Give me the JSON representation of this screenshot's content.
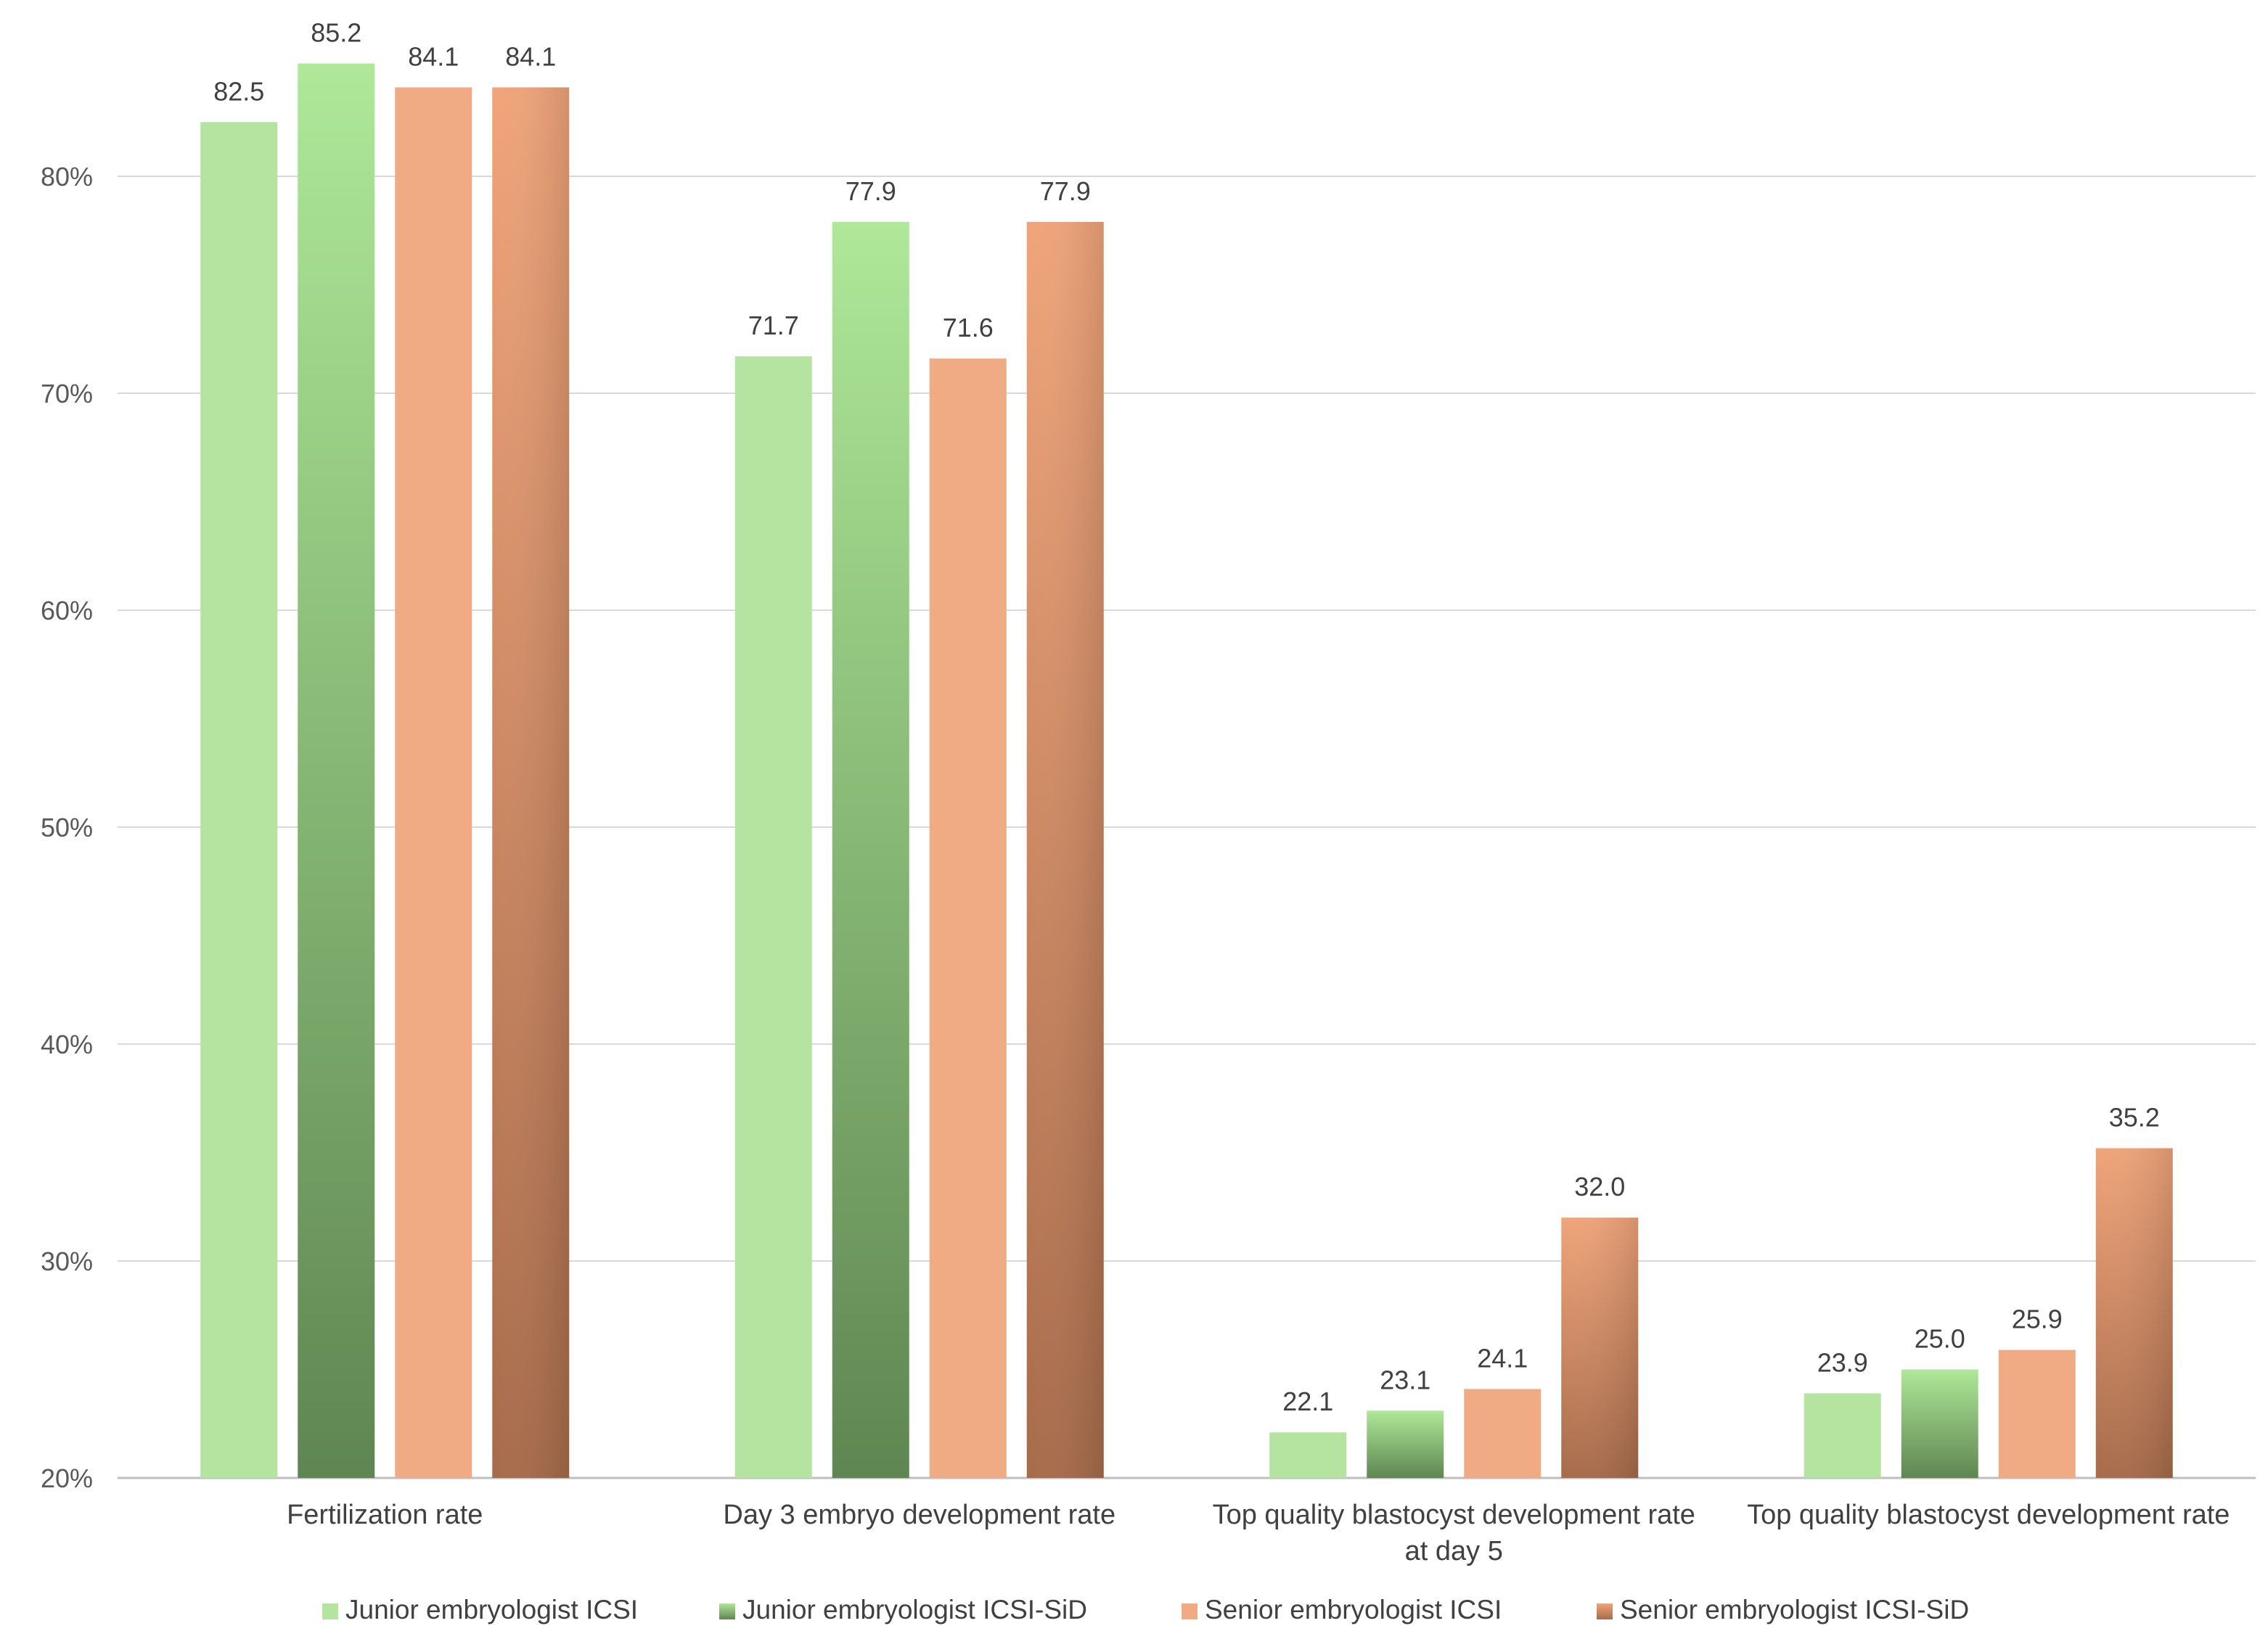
{
  "chart_data": {
    "type": "bar",
    "title": "",
    "xlabel": "",
    "ylabel": "",
    "ylim": [
      20,
      85
    ],
    "y_tick_values": [
      20,
      30,
      40,
      50,
      60,
      70,
      80
    ],
    "y_tick_labels": [
      "20%",
      "30%",
      "40%",
      "50%",
      "60%",
      "70%",
      "80%"
    ],
    "grid": true,
    "legend_position": "bottom",
    "categories": [
      [
        "Fertilization rate"
      ],
      [
        "Day 3 embryo development rate"
      ],
      [
        "Top quality blastocyst development rate",
        "at day 5"
      ],
      [
        "Top quality blastocyst development rate"
      ]
    ],
    "series": [
      {
        "name": "Junior embryologist ICSI",
        "values": [
          82.5,
          71.7,
          22.1,
          23.9
        ],
        "labels": [
          "82.5",
          "71.7",
          "22.1",
          "23.9"
        ],
        "color_top": "#b5e4a0",
        "color_bottom": "#b5e4a0",
        "legend_color": "#b5e4a0"
      },
      {
        "name": "Junior embryologist ICSI-SiD",
        "values": [
          85.2,
          77.9,
          23.1,
          25.0
        ],
        "labels": [
          "85.2",
          "77.9",
          "23.1",
          "25.0"
        ],
        "color_top": "#aee898",
        "color_bottom": "#5f8652",
        "legend_color": "#6f9a5f"
      },
      {
        "name": "Senior embryologist ICSI",
        "values": [
          84.1,
          71.6,
          24.1,
          25.9
        ],
        "labels": [
          "84.1",
          "71.6",
          "24.1",
          "25.9"
        ],
        "color_top": "#f0ab85",
        "color_bottom": "#f0ab85",
        "legend_color": "#f0ab85"
      },
      {
        "name": "Senior embryologist ICSI-SiD",
        "values": [
          84.1,
          77.9,
          32.0,
          35.2
        ],
        "labels": [
          "84.1",
          "77.9",
          "32.0",
          "35.2"
        ],
        "color_top": "#f0a479",
        "color_bottom": "#a76b4a",
        "legend_color": "#b07552"
      }
    ]
  }
}
